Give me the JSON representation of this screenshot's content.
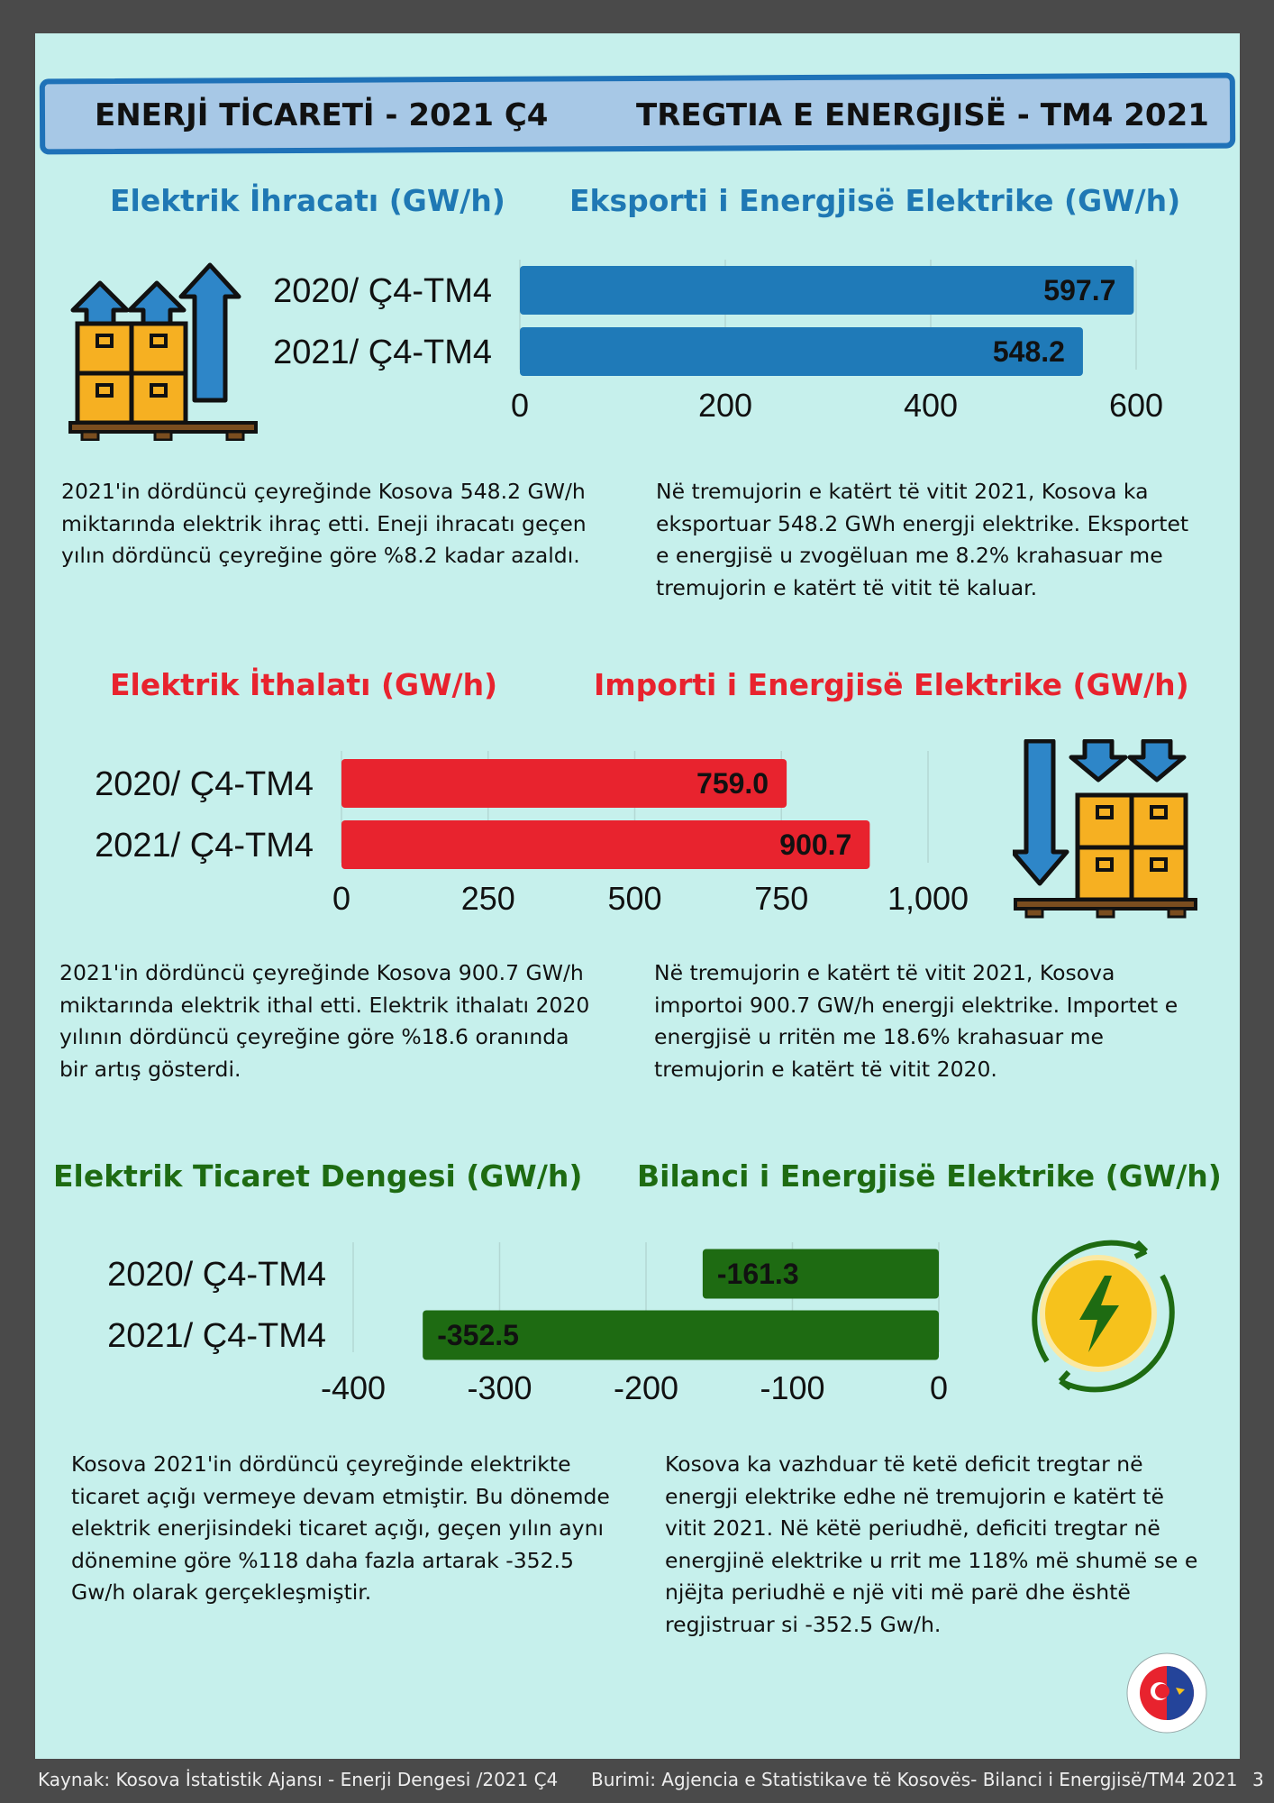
{
  "header": {
    "title_left": "ENERJİ TİCARETİ - 2021 Ç4",
    "title_right": "TREGTIA E ENERGJISË - TM4 2021"
  },
  "export_section": {
    "title_left": "Elektrik İhracatı (GW/h)",
    "title_right": "Eksporti i Energjisë Elektrike (GW/h)",
    "text_left": [
      "2021'in dördüncü çeyreğinde Kosova 548.2 GW/h",
      "miktarında elektrik ihraç etti. Eneji ihracatı geçen",
      "yılın dördüncü çeyreğine göre %8.2 kadar azaldı."
    ],
    "text_right": [
      "Në tremujorin e katërt të vitit 2021,  Kosova ka",
      "eksportuar 548.2 GWh energji elektrike.  Eksportet",
      "e energjisë u zvogëluan me 8.2% krahasuar me",
      "tremujorin e katërt të vitit të kaluar."
    ]
  },
  "import_section": {
    "title_left": "Elektrik İthalatı (GW/h)",
    "title_right": "Importi i Energjisë Elektrike (GW/h)",
    "text_left": [
      "2021'in dördüncü çeyreğinde Kosova 900.7 GW/h",
      "miktarında elektrik ithal etti. Elektrik ithalatı  2020",
      "yılının dördüncü çeyreğine göre %18.6 oranında",
      "bir artış gösterdi."
    ],
    "text_right": [
      "Në tremujorin e katërt të vitit 2021, Kosova",
      "importoi 900.7 GW/h energji elektrike. Importet e",
      "energjisë u rritën me 18.6% krahasuar me",
      "tremujorin e katërt të vitit 2020."
    ]
  },
  "balance_section": {
    "title_left": "Elektrik Ticaret Dengesi  (GW/h)",
    "title_right": "Bilanci i Energjisë Elektrike (GW/h)",
    "text_left": [
      "Kosova 2021'in dördüncü çeyreğinde elektrikte",
      "ticaret açığı vermeye devam etmiştir. Bu dönemde",
      "elektrik enerjisindeki ticaret açığı, geçen yılın aynı",
      "dönemine göre %118 daha fazla artarak -352.5",
      "Gw/h olarak gerçekleşmiştir."
    ],
    "text_right": [
      "Kosova ka vazhduar të ketë deficit tregtar në",
      "energji elektrike edhe në tremujorin e katërt të",
      "vitit 2021. Në këtë periudhë, deficiti tregtar në",
      "energjinë elektrike u rrit me 118% më shumë se e",
      "njëjta periudhë e një viti më parë dhe është",
      "regjistruar si -352.5 Gw/h."
    ]
  },
  "chart_data": [
    {
      "type": "bar",
      "orientation": "horizontal",
      "categories": [
        "2020/ Ç4-TM4",
        "2021/ Ç4-TM4"
      ],
      "values": [
        597.7,
        548.2
      ],
      "value_labels": [
        "597.7",
        "548.2"
      ],
      "xlim": [
        0,
        600
      ],
      "ticks": [
        0,
        200,
        400,
        600
      ],
      "tick_labels": [
        "0",
        "200",
        "400",
        "600"
      ],
      "color": "#1f7ab8",
      "grid": true
    },
    {
      "type": "bar",
      "orientation": "horizontal",
      "categories": [
        "2020/ Ç4-TM4",
        "2021/ Ç4-TM4"
      ],
      "values": [
        759.0,
        900.7
      ],
      "value_labels": [
        "759.0",
        "900.7"
      ],
      "xlim": [
        0,
        1000
      ],
      "ticks": [
        0,
        250,
        500,
        750,
        1000
      ],
      "tick_labels": [
        "0",
        "250",
        "500",
        "750",
        "1,000"
      ],
      "color": "#e8232e",
      "grid": true
    },
    {
      "type": "bar",
      "orientation": "horizontal",
      "categories": [
        "2020/ Ç4-TM4",
        "2021/ Ç4-TM4"
      ],
      "values": [
        -161.3,
        -352.5
      ],
      "value_labels": [
        "-161.3",
        "-352.5"
      ],
      "xlim": [
        -400,
        0
      ],
      "ticks": [
        -400,
        -300,
        -200,
        -100,
        0
      ],
      "tick_labels": [
        "-400",
        "-300",
        "-200",
        "-100",
        "0"
      ],
      "color": "#1e6b12",
      "grid": true
    }
  ],
  "footer": {
    "source_left": "Kaynak: Kosova İstatistik Ajansı - Enerji Dengesi /2021 Ç4",
    "source_right": "Burimi: Agjencia e Statistikave të Kosovës- Bilanci i Energjisë/TM4  2021",
    "page_number": "3"
  },
  "icons": {
    "export": "export-boxes-icon",
    "import": "import-boxes-icon",
    "energy": "energy-cycle-icon",
    "logo": "chamber-logo-icon"
  }
}
